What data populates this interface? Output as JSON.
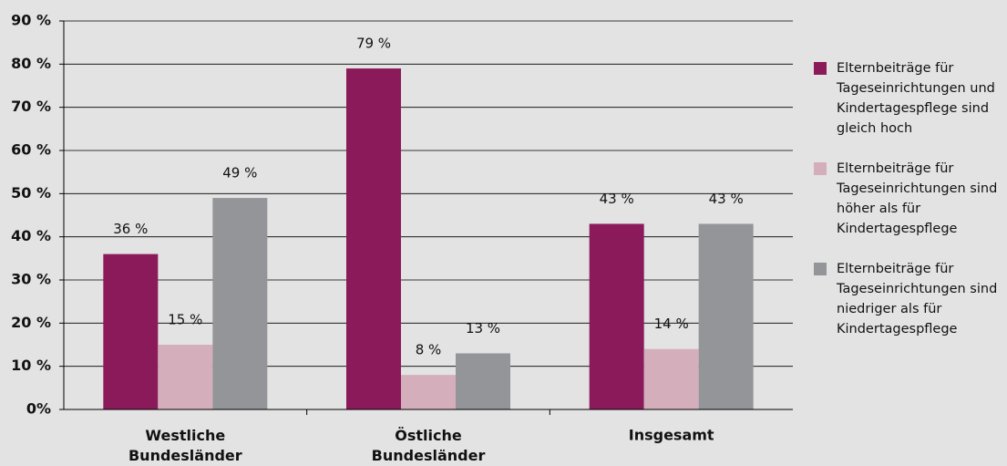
{
  "chart_data": {
    "type": "bar",
    "categories": [
      "Westliche Bundesländer",
      "Östliche Bundesländer",
      "Insgesamt"
    ],
    "series": [
      {
        "name": "Elternbeiträge für Tageseinrichtungen und Kindertagespflege sind gleich hoch",
        "color": "#8b1a5a",
        "values": [
          36,
          79,
          43
        ],
        "value_labels": [
          "36 %",
          "79 %",
          "43 %"
        ]
      },
      {
        "name": "Elternbeiträge für Tageseinrichtungen sind höher als für Kindertagespflege",
        "color": "#d4aebb",
        "values": [
          15,
          8,
          14
        ],
        "value_labels": [
          "15 %",
          "8 %",
          "14 %"
        ]
      },
      {
        "name": "Elternbeiträge für Tageseinrichtungen sind niedriger als für Kindertagespflege",
        "color": "#939598",
        "values": [
          49,
          13,
          43
        ],
        "value_labels": [
          "49 %",
          "13 %",
          "43 %"
        ]
      }
    ],
    "ylim": [
      0,
      90
    ],
    "yticks": [
      {
        "value": 0,
        "label": "0%"
      },
      {
        "value": 10,
        "label": "10 %"
      },
      {
        "value": 20,
        "label": "20 %"
      },
      {
        "value": 30,
        "label": "30 %"
      },
      {
        "value": 40,
        "label": "40 %"
      },
      {
        "value": 50,
        "label": "50 %"
      },
      {
        "value": 60,
        "label": "60 %"
      },
      {
        "value": 70,
        "label": "70 %"
      },
      {
        "value": 80,
        "label": "80 %"
      },
      {
        "value": 90,
        "label": "90 %"
      }
    ],
    "grid": true,
    "legend": "right"
  }
}
